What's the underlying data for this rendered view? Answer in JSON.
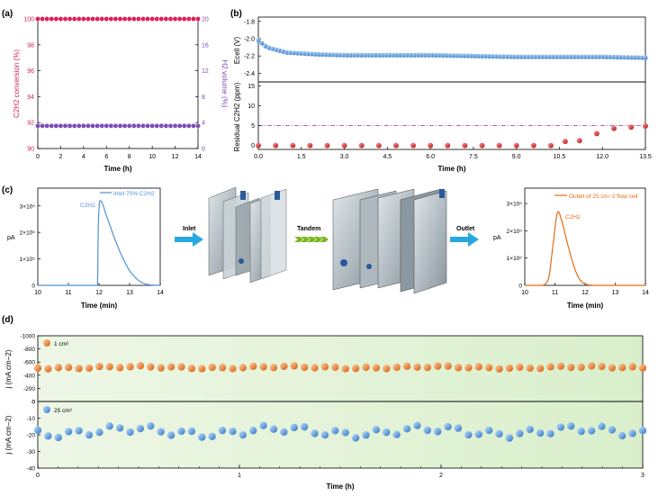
{
  "colors": {
    "conv": "#d6245a",
    "h2": "#7b4fb4",
    "blue": "#4e93d8",
    "red": "#d81e1e",
    "orange": "#e56b14",
    "arrow": "#27a8e0",
    "green": "#79b51e",
    "dash": "#a03b8a"
  },
  "panels": {
    "a": {
      "tag": "(a)",
      "xlabel": "Time (h)",
      "ylabel_left": "C2H2 conversion (%)",
      "ylabel_right": "H2 volume (%)",
      "xticks": [
        "0",
        "2",
        "4",
        "6",
        "8",
        "10",
        "12",
        "14"
      ],
      "yticks_left": [
        "90",
        "92",
        "94",
        "96",
        "98",
        "100"
      ],
      "yticks_right": [
        "0",
        "4",
        "8",
        "12",
        "16",
        "20"
      ]
    },
    "b": {
      "tag": "(b)",
      "xlabel": "Time (h)",
      "ylabel_top": "Ecell (V)",
      "ylabel_bottom": "Residual C2H2 (ppm)",
      "xticks": [
        "0.0",
        "1.5",
        "3.0",
        "4.5",
        "6.0",
        "7.5",
        "9.0",
        "10.5",
        "12.0",
        "13.5"
      ],
      "yticks_top": [
        "-1.8",
        "-2.0",
        "-2.2",
        "-2.4"
      ],
      "yticks_bottom": [
        "0",
        "5",
        "10",
        "15"
      ]
    },
    "c": {
      "tag": "(c)",
      "inlet_legend": "Inlet 70% C2H2",
      "outlet_legend": "Outlet of 25 cm−2 flow cell",
      "peak_label": "C2H2",
      "xlabel": "Time (min)",
      "ylabel": "pA",
      "xticks": [
        "10",
        "11",
        "12",
        "13",
        "14"
      ],
      "yticks": [
        "0",
        "1×10⁵",
        "2×10⁵",
        "3×10⁵"
      ],
      "arrow_inlet": "Inlet",
      "arrow_tandem": "Tandem",
      "arrow_outlet": "Outlet"
    },
    "d": {
      "tag": "(d)",
      "xlabel": "Time (h)",
      "ylabel": "j (mA cm−2)",
      "legend_top": "1 cm²",
      "legend_bottom": "25 cm²",
      "xticks": [
        "0",
        "1",
        "2",
        "3"
      ],
      "yticks_top": [
        "-1000",
        "-800",
        "-600",
        "-400",
        "-200",
        "0"
      ],
      "yticks_bottom": [
        "-40",
        "-30",
        "-20",
        "-10",
        "0"
      ]
    }
  },
  "chart_data": [
    {
      "id": "a",
      "type": "scatter",
      "xlim": [
        0,
        14
      ],
      "ylim": [
        90,
        100
      ],
      "y2lim": [
        0,
        20
      ],
      "series": [
        {
          "axis": "left",
          "x_start": 0,
          "x_end": 14,
          "count": 36,
          "value": 100
        },
        {
          "axis": "right",
          "x_start": 0,
          "x_end": 14,
          "count": 36,
          "value": 3.5
        }
      ]
    },
    {
      "id": "b-top",
      "type": "scatter",
      "xlim": [
        0,
        13.5
      ],
      "ylim": [
        -2.5,
        -1.75
      ],
      "series": [
        {
          "x": [
            0,
            0.3,
            1,
            2,
            3,
            4.5,
            6,
            7.5,
            9,
            10.5,
            12,
            13.5
          ],
          "y": [
            -2.02,
            -2.1,
            -2.16,
            -2.18,
            -2.19,
            -2.19,
            -2.19,
            -2.2,
            -2.21,
            -2.21,
            -2.21,
            -2.22
          ]
        }
      ]
    },
    {
      "id": "b-bottom",
      "type": "scatter",
      "xlim": [
        0,
        13.5
      ],
      "ylim": [
        -1,
        16
      ],
      "threshold": 5,
      "series": [
        {
          "x": [
            0,
            0.6,
            1.2,
            1.8,
            2.4,
            3.0,
            3.6,
            4.2,
            4.8,
            5.4,
            6.0,
            6.6,
            7.2,
            7.8,
            8.4,
            9.0,
            9.6,
            10.2,
            10.7,
            11.2,
            11.8,
            12.4,
            13.0,
            13.5
          ],
          "y": [
            0,
            0,
            0,
            0,
            0,
            0,
            0,
            0,
            0,
            0,
            0,
            0,
            0,
            0,
            0,
            0,
            0,
            0,
            1.0,
            1.2,
            3.0,
            4.3,
            4.6,
            4.9
          ]
        }
      ]
    },
    {
      "id": "c-inlet",
      "type": "line",
      "xlim": [
        10,
        14
      ],
      "ylim": [
        0,
        340000
      ],
      "series": [
        {
          "x": [
            10,
            11.95,
            11.98,
            12.03,
            12.25,
            12.5,
            12.75,
            13.0,
            13.3,
            13.6,
            14
          ],
          "y": [
            0,
            0,
            240000,
            320000,
            260000,
            180000,
            110000,
            55000,
            18000,
            3000,
            0
          ]
        }
      ]
    },
    {
      "id": "c-outlet",
      "type": "line",
      "xlim": [
        10,
        14
      ],
      "ylim": [
        0,
        330000
      ],
      "series": [
        {
          "x": [
            10,
            10.6,
            10.8,
            10.95,
            11.08,
            11.2,
            11.4,
            11.6,
            11.8,
            12.0,
            12.3,
            14
          ],
          "y": [
            0,
            0,
            30000,
            160000,
            265000,
            245000,
            160000,
            80000,
            25000,
            5000,
            0,
            0
          ]
        }
      ]
    },
    {
      "id": "d-top",
      "type": "scatter",
      "xlim": [
        0,
        3
      ],
      "ylim": [
        -1000,
        0
      ],
      "series": [
        {
          "name": "1 cm²",
          "x_start": 0,
          "x_end": 3,
          "count": 60,
          "mean": -520,
          "amplitude": 25
        }
      ]
    },
    {
      "id": "d-bottom",
      "type": "scatter",
      "xlim": [
        0,
        3
      ],
      "ylim": [
        -40,
        0
      ],
      "series": [
        {
          "name": "25 cm²",
          "x_start": 0,
          "x_end": 3,
          "count": 60,
          "mean": -18,
          "amplitude": 4
        }
      ]
    }
  ]
}
